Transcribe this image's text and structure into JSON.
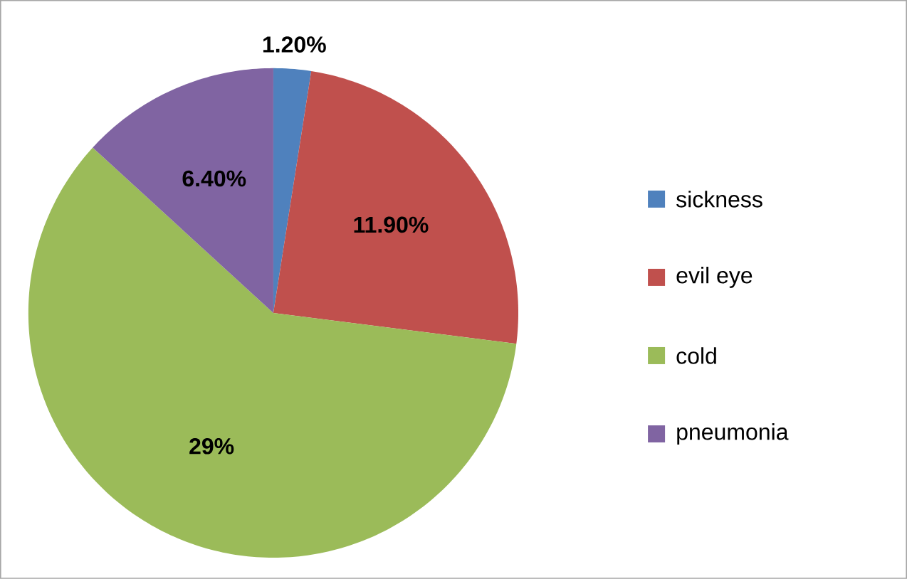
{
  "chart_data": {
    "type": "pie",
    "categories": [
      "sickness",
      "evil eye",
      "cold",
      "pneumonia"
    ],
    "values": [
      1.2,
      11.9,
      29,
      6.4
    ],
    "value_labels": [
      "1.20%",
      "11.90%",
      "29%",
      "6.40%"
    ],
    "colors": [
      "#4f81bd",
      "#c0504d",
      "#9bbb59",
      "#8064a2"
    ],
    "legend": "right"
  }
}
